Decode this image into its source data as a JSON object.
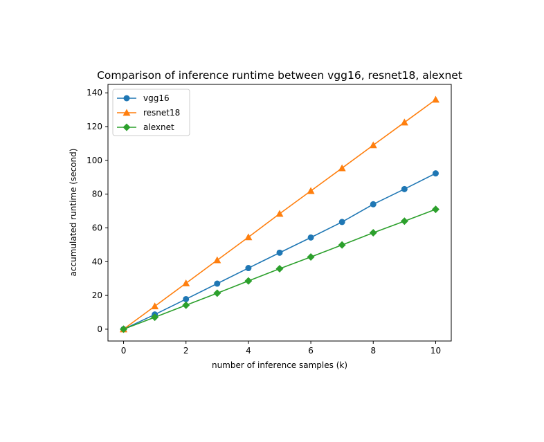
{
  "chart_data": {
    "type": "line",
    "title": "Comparison of inference runtime between vgg16, resnet18, alexnet",
    "xlabel": "number of inference samples (k)",
    "ylabel": "accumulated runtime (second)",
    "x": [
      0,
      1,
      2,
      3,
      4,
      5,
      6,
      7,
      8,
      9,
      10
    ],
    "xlim": [
      -0.5,
      10.5
    ],
    "ylim": [
      -7,
      145
    ],
    "xticks": [
      0,
      2,
      4,
      6,
      8,
      10
    ],
    "yticks": [
      0,
      20,
      40,
      60,
      80,
      100,
      120,
      140
    ],
    "grid": false,
    "legend_position": "top-left",
    "series": [
      {
        "name": "vgg16",
        "color": "#1f77b4",
        "marker": "circle",
        "values": [
          0,
          8.7,
          17.8,
          27,
          36.2,
          45.3,
          54.3,
          63.5,
          74,
          83,
          92.3
        ]
      },
      {
        "name": "resnet18",
        "color": "#ff7f0e",
        "marker": "triangle",
        "values": [
          0,
          13.6,
          27.2,
          40.9,
          54.5,
          68.4,
          81.9,
          95.4,
          109,
          122.5,
          136
        ]
      },
      {
        "name": "alexnet",
        "color": "#2ca02c",
        "marker": "diamond",
        "values": [
          0,
          7.1,
          14.2,
          21.3,
          28.6,
          35.8,
          42.8,
          49.9,
          57.1,
          64,
          71
        ]
      }
    ]
  }
}
